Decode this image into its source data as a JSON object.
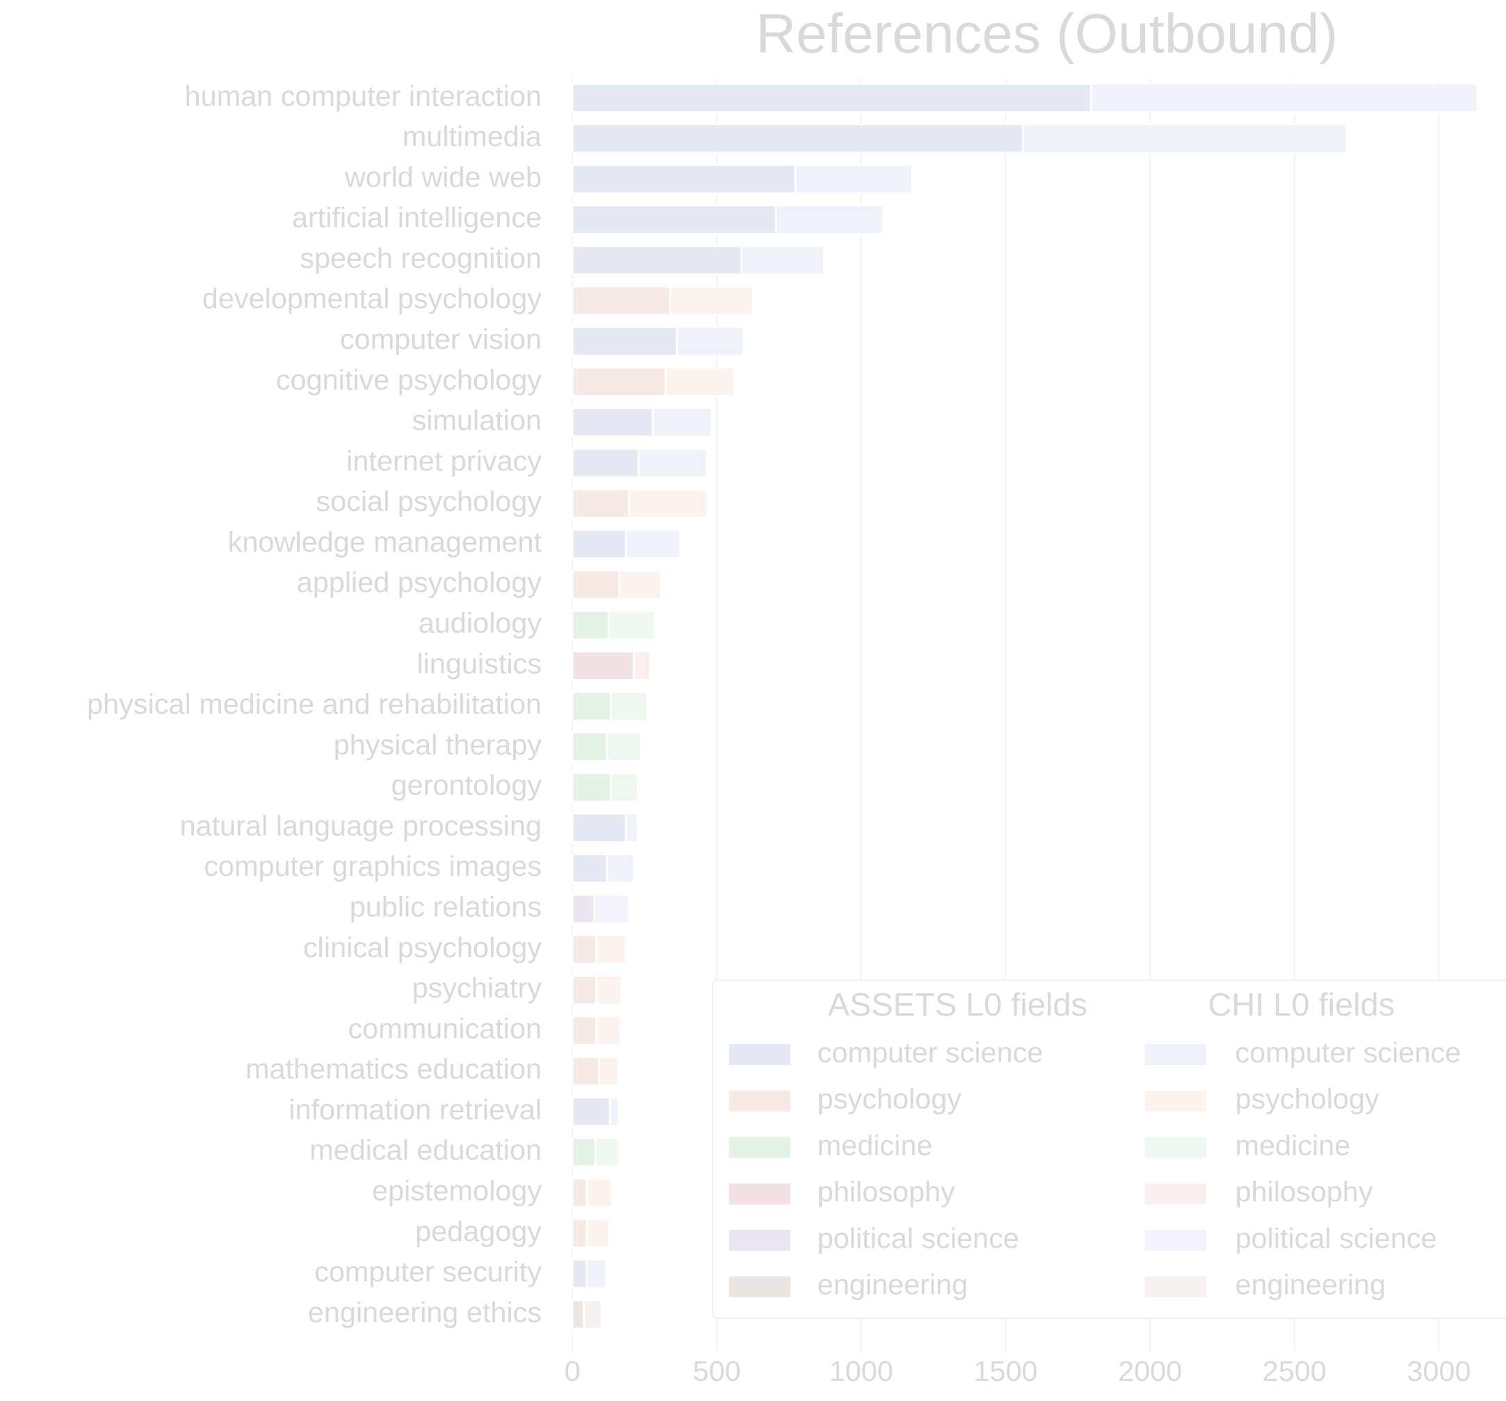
{
  "chart_data": {
    "type": "bar",
    "orientation": "horizontal",
    "stacked": true,
    "title": "References (Outbound)",
    "categories": [
      "human computer interaction",
      "multimedia",
      "world wide web",
      "artificial intelligence",
      "speech recognition",
      "developmental psychology",
      "computer vision",
      "cognitive psychology",
      "simulation",
      "internet privacy",
      "social psychology",
      "knowledge management",
      "applied psychology",
      "audiology",
      "linguistics",
      "physical medicine and rehabilitation",
      "physical therapy",
      "gerontology",
      "natural language processing",
      "computer graphics images",
      "public relations",
      "clinical psychology",
      "psychiatry",
      "communication",
      "mathematics education",
      "information retrieval",
      "medical education",
      "epistemology",
      "pedagogy",
      "computer security",
      "engineering ethics"
    ],
    "series": [
      {
        "name": "ASSETS L0 fields",
        "values": [
          1796,
          1560,
          772,
          705,
          585,
          339,
          362,
          323,
          279,
          229,
          196,
          186,
          163,
          126,
          213,
          133,
          120,
          133,
          186,
          120,
          76,
          83,
          83,
          83,
          93,
          130,
          80,
          50,
          50,
          50,
          40
        ],
        "colors": [
          "#e5e9f4",
          "#e5e9f4",
          "#e5e9f4",
          "#e5e9f4",
          "#e5e9f4",
          "#f7e9e4",
          "#e5e9f4",
          "#f7e9e4",
          "#e5e9f4",
          "#e5e9f4",
          "#f7e9e4",
          "#e5e9f4",
          "#f7e9e4",
          "#e5f2e6",
          "#f3e2e4",
          "#e5f2e6",
          "#e5f2e6",
          "#e5f2e6",
          "#e5e9f4",
          "#e5e9f4",
          "#ece6f0",
          "#f7e9e4",
          "#f7e9e4",
          "#f7e9e4",
          "#f7e9e4",
          "#e5e9f4",
          "#e5f2e6",
          "#f7e9e4",
          "#f7e9e4",
          "#e5e9f4",
          "#ebe6e2"
        ],
        "legend_colors": [
          "#e5e9f4",
          "#f7e9e4",
          "#e5f2e6",
          "#f3e2e4",
          "#ece6f0",
          "#ebe6e2"
        ]
      },
      {
        "name": "CHI L0 fields",
        "values": [
          1337,
          1120,
          405,
          371,
          286,
          286,
          230,
          236,
          203,
          237,
          270,
          186,
          143,
          160,
          56,
          126,
          116,
          93,
          40,
          93,
          120,
          103,
          87,
          83,
          67,
          30,
          80,
          86,
          76,
          66,
          60
        ],
        "colors": [
          "#eff3f9",
          "#eff3f9",
          "#eff3f9",
          "#eff3f9",
          "#eff3f9",
          "#fcf3ef",
          "#eff3f9",
          "#fcf3ef",
          "#eff3f9",
          "#eff3f9",
          "#fcf3ef",
          "#eff3f9",
          "#fcf3ef",
          "#eef8ef",
          "#fdeeee",
          "#eef8ef",
          "#eef8ef",
          "#eef8ef",
          "#eff3f9",
          "#eff3f9",
          "#f4f3fc",
          "#fcf3ef",
          "#fcf3ef",
          "#fcf3ef",
          "#fcf3ef",
          "#eff3f9",
          "#eef8ef",
          "#fcf3ef",
          "#fcf3ef",
          "#eff3f9",
          "#f7f2ef"
        ],
        "legend_colors": [
          "#eff3f9",
          "#fcf3ef",
          "#eef8ef",
          "#fdeeee",
          "#f4f3fc",
          "#f7f2ef"
        ]
      }
    ],
    "legend_fields": [
      "computer science",
      "psychology",
      "medicine",
      "philosophy",
      "political science",
      "engineering"
    ],
    "xlim": [
      0,
      3150
    ],
    "xticks": [
      0,
      500,
      1000,
      1500,
      2000,
      2500,
      3000
    ],
    "grid": true,
    "legend_position": "lower right"
  }
}
